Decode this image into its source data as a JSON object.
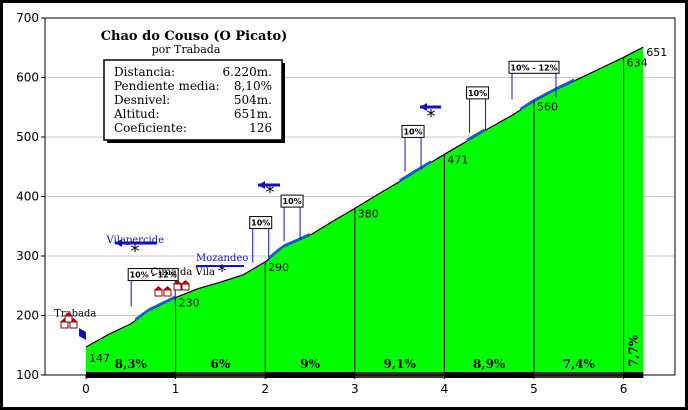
{
  "chart_data": {
    "type": "area",
    "title": "Chao do Couso (O Picato)",
    "subtitle": "por Trabada",
    "x_ticks": [
      "0",
      "1",
      "2",
      "3",
      "4",
      "5",
      "6"
    ],
    "y_ticks": [
      "100",
      "200",
      "300",
      "400",
      "500",
      "600",
      "700"
    ],
    "xlim": [
      0,
      6.22
    ],
    "ylim": [
      100,
      700
    ],
    "profile": {
      "x": [
        0,
        0.25,
        0.5,
        0.7,
        1.0,
        1.25,
        1.5,
        1.75,
        2.0,
        2.2,
        2.5,
        2.75,
        3.0,
        3.25,
        3.5,
        3.75,
        4.0,
        4.25,
        4.5,
        4.75,
        5.0,
        5.25,
        5.5,
        5.75,
        6.0,
        6.22
      ],
      "y": [
        147,
        168,
        186,
        208,
        230,
        245,
        256,
        268,
        290,
        315,
        335,
        358,
        380,
        403,
        425,
        448,
        471,
        493,
        515,
        536,
        560,
        580,
        598,
        616,
        634,
        651
      ]
    },
    "km_markers": [
      {
        "x": 0,
        "label": "147"
      },
      {
        "x": 1,
        "label": "230"
      },
      {
        "x": 2,
        "label": "290"
      },
      {
        "x": 3,
        "label": "380"
      },
      {
        "x": 4,
        "label": "471"
      },
      {
        "x": 5,
        "label": "560"
      },
      {
        "x": 6,
        "label": "634"
      },
      {
        "x": 6.22,
        "label": "651"
      }
    ],
    "segment_grades": [
      {
        "x0": 0,
        "x1": 1,
        "label": "8,3%"
      },
      {
        "x0": 1,
        "x1": 2,
        "label": "6%"
      },
      {
        "x0": 2,
        "x1": 3,
        "label": "9%"
      },
      {
        "x0": 3,
        "x1": 4,
        "label": "9,1%"
      },
      {
        "x0": 4,
        "x1": 5,
        "label": "8,9%"
      },
      {
        "x0": 5,
        "x1": 6,
        "label": "7,4%"
      },
      {
        "x0": 6,
        "x1": 6.22,
        "label": "7,7%"
      }
    ],
    "stats": [
      {
        "label": "Distancia:",
        "value": "6.220m."
      },
      {
        "label": "Pendiente media:",
        "value": "8,10%"
      },
      {
        "label": "Desnivel:",
        "value": "504m."
      },
      {
        "label": "Altitud:",
        "value": "651m."
      },
      {
        "label": "Coeficiente:",
        "value": "126"
      }
    ],
    "ramp_annotations": [
      {
        "x": 0.75,
        "label": "10% - 12%",
        "wide": true
      },
      {
        "x": 1.95,
        "label": "10%",
        "wide": false
      },
      {
        "x": 2.3,
        "label": "10%",
        "wide": false
      },
      {
        "x": 3.65,
        "label": "10%",
        "wide": false
      },
      {
        "x": 4.37,
        "label": "10%",
        "wide": false
      },
      {
        "x": 5.0,
        "label": "10% - 12%",
        "wide": true
      }
    ],
    "places": [
      {
        "label": "Trabada",
        "style": "black",
        "x": -0.12,
        "y": 198
      },
      {
        "label": "Vilapercide",
        "style": "blue",
        "x": 0.55,
        "y": 322
      },
      {
        "label": "Cima da Vila",
        "style": "black",
        "x": 1.08,
        "y": 268
      },
      {
        "label": "Mozandeo",
        "style": "blue",
        "x": 1.52,
        "y": 292
      }
    ],
    "colors": {
      "fill": "#00ff00",
      "outline": "#1060d0",
      "frame": "#000000",
      "background": "#ffffff",
      "place_blue": "#1010c0",
      "arrow": "#1010c0"
    }
  }
}
